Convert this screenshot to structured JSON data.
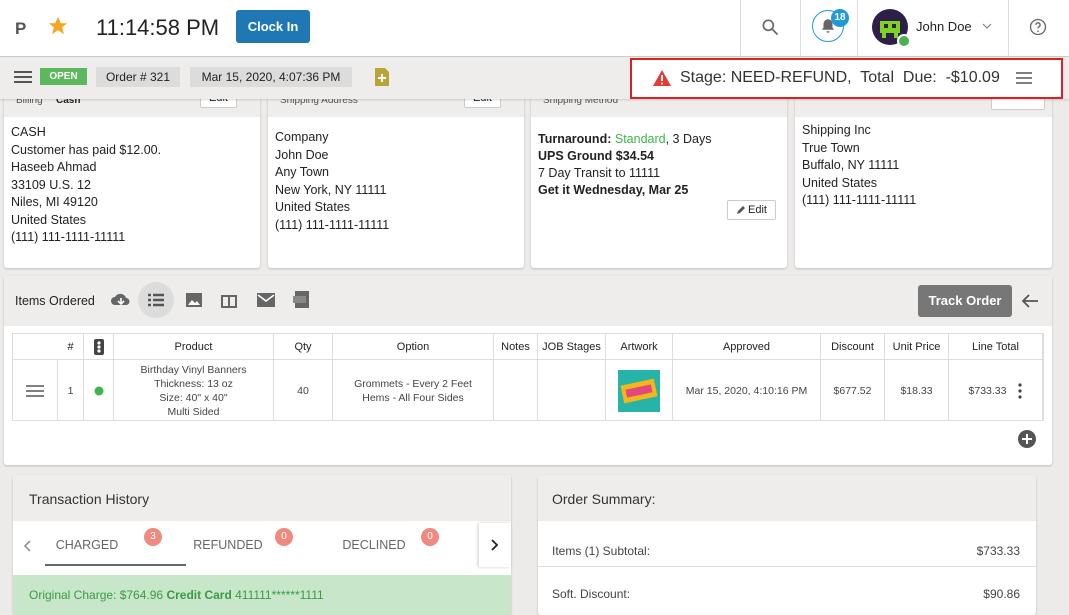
{
  "header": {
    "logo": "P",
    "time": "11:14:58 PM",
    "clock_in": "Clock In",
    "notifications": 18,
    "user": "John Doe"
  },
  "toolbar": {
    "status": "OPEN",
    "order": "Order # 321",
    "date": "Mar 15, 2020, 4:07:36 PM",
    "stage": "Stage: NEED-REFUND,  Total  Due:  -$10.09"
  },
  "cards": [
    {
      "title": "Billing",
      "subtitle": "Cash",
      "edit": "Edit",
      "lines": [
        "CASH",
        "Customer has paid $12.00.",
        "Haseeb Ahmad",
        "33109 U.S. 12",
        "Niles, MI 49120",
        "United States",
        "(111) 111-1111-11111"
      ]
    },
    {
      "title": "Shipping Address",
      "edit": "Edit",
      "lines": [
        "Company",
        "John Doe",
        "Any Town",
        "New York, NY 11111",
        "United States",
        "(111) 111-1111-11111"
      ]
    },
    {
      "title": "Shipping Method",
      "turnaround_label": "Turnaround:",
      "turnaround_value": "Standard",
      "turnaround_days": ", 3 Days",
      "lines": [
        "UPS Ground $34.54",
        "7 Day Transit to 11111",
        "Get it Wednesday, Mar 25"
      ],
      "edit": "Edit"
    },
    {
      "lines": [
        "Shipping Inc",
        "True Town",
        "Buffalo, NY 11111",
        "United States",
        "(111) 111-1111-11111"
      ]
    }
  ],
  "items": {
    "title": "Items Ordered",
    "track": "Track Order",
    "columns": [
      "#",
      "Product",
      "Qty",
      "Option",
      "Notes",
      "JOB Stages",
      "Artwork",
      "Approved",
      "Discount",
      "Unit Price",
      "Line Total"
    ],
    "row": {
      "num": "1",
      "product": [
        "Birthday Vinyl Banners",
        "Thickness: 13 oz",
        "Size: 40\" x 40\"",
        "Multi Sided"
      ],
      "qty": "40",
      "option": [
        "Grommets - Every 2 Feet",
        "Hems - All Four Sides"
      ],
      "approved": "Mar 15, 2020, 4:10:16 PM",
      "discount": "$677.52",
      "unit_price": "$18.33",
      "line_total": "$733.33"
    }
  },
  "transactions": {
    "title": "Transaction History",
    "tabs": [
      {
        "label": "CHARGED",
        "count": 3
      },
      {
        "label": "REFUNDED",
        "count": 0
      },
      {
        "label": "DECLINED",
        "count": 0
      }
    ],
    "charge_label": "Original Charge: $764.96",
    "charge_method": "Credit Card",
    "charge_card": "411111******1111"
  },
  "summary": {
    "title": "Order Summary:",
    "rows": [
      {
        "label": "Items (1) Subtotal:",
        "value": "$733.33"
      },
      {
        "label": "Soft. Discount:",
        "value": "$90.86"
      }
    ]
  }
}
